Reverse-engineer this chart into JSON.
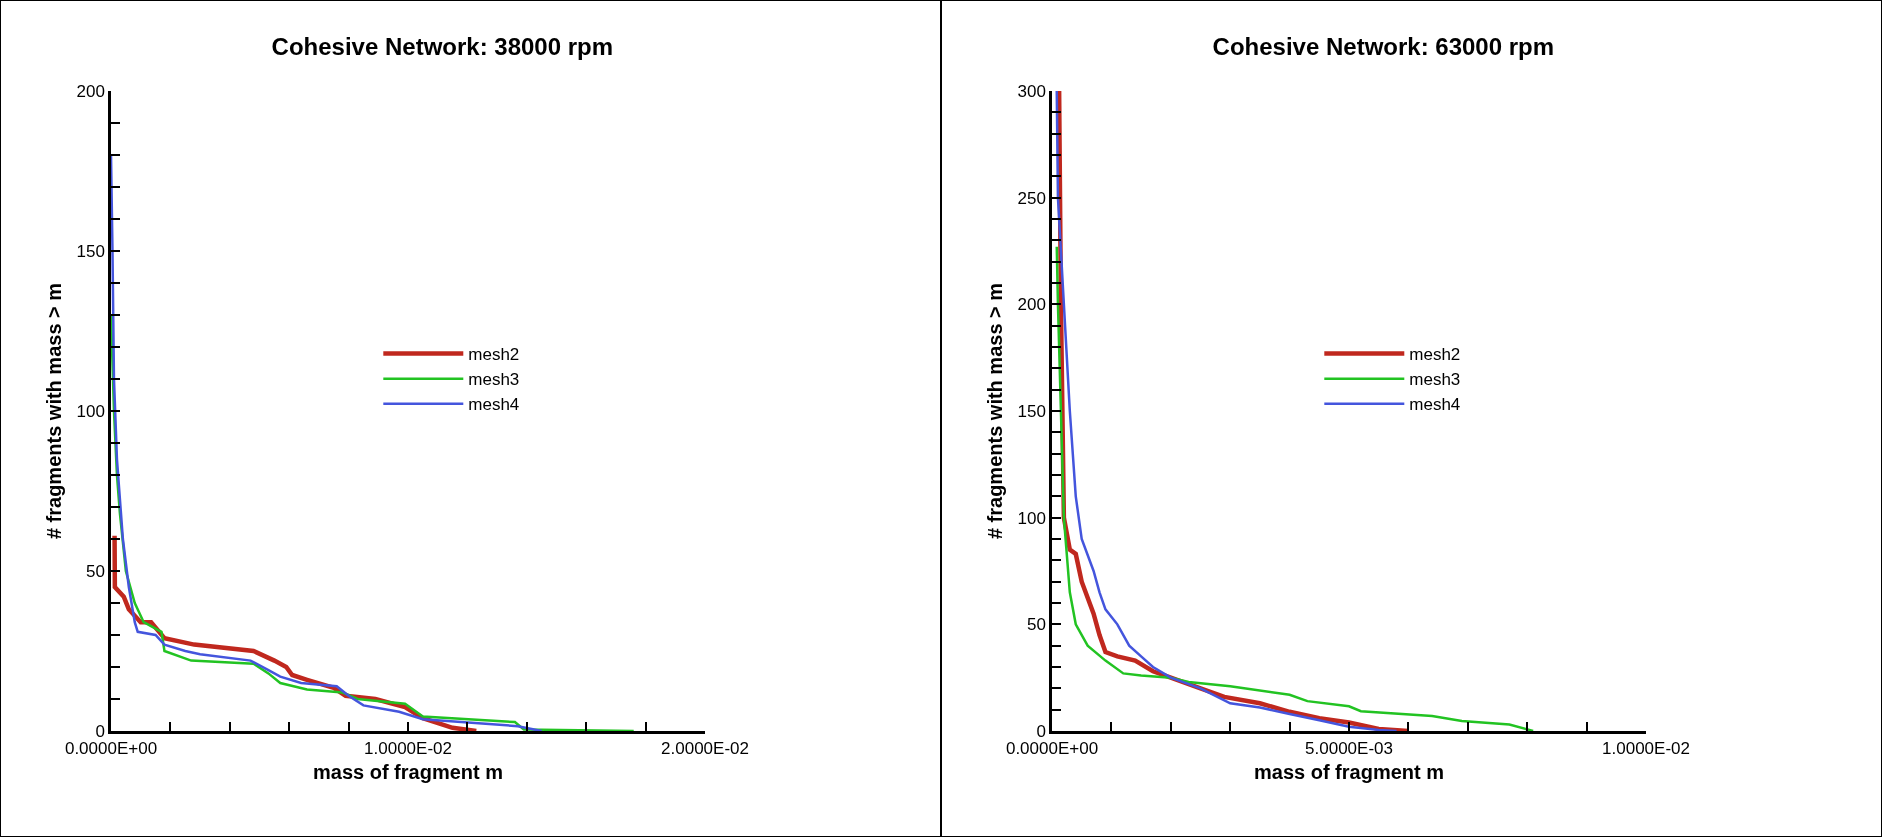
{
  "chart_data": [
    {
      "type": "line",
      "title": "Cohesive Network: 38000 rpm",
      "xlabel": "mass of fragment m",
      "ylabel": "# fragments with mass > m",
      "xlim": [
        0,
        0.02
      ],
      "xticks": [
        {
          "value": 0,
          "label": "0.0000E+00"
        },
        {
          "value": 0.002,
          "label": null
        },
        {
          "value": 0.004,
          "label": null
        },
        {
          "value": 0.006,
          "label": null
        },
        {
          "value": 0.008,
          "label": null
        },
        {
          "value": 0.01,
          "label": "1.0000E-02"
        },
        {
          "value": 0.012,
          "label": null
        },
        {
          "value": 0.014,
          "label": null
        },
        {
          "value": 0.016,
          "label": null
        },
        {
          "value": 0.018,
          "label": null
        },
        {
          "value": 0.02,
          "label": "2.0000E-02"
        }
      ],
      "ylim": [
        0,
        200
      ],
      "yticks": [
        0,
        {
          "value": 10,
          "label": null
        },
        {
          "value": 20,
          "label": null
        },
        {
          "value": 30,
          "label": null
        },
        {
          "value": 40,
          "label": null
        },
        50,
        {
          "value": 60,
          "label": null
        },
        {
          "value": 70,
          "label": null
        },
        {
          "value": 80,
          "label": null
        },
        {
          "value": 90,
          "label": null
        },
        100,
        {
          "value": 110,
          "label": null
        },
        {
          "value": 120,
          "label": null
        },
        {
          "value": 130,
          "label": null
        },
        {
          "value": 140,
          "label": null
        },
        150,
        {
          "value": 160,
          "label": null
        },
        {
          "value": 170,
          "label": null
        },
        {
          "value": 180,
          "label": null
        },
        {
          "value": 190,
          "label": null
        },
        200
      ],
      "grid": false,
      "legend": "center",
      "marker": "none",
      "line_style": "solid",
      "series": [
        {
          "name": "mesh2",
          "color": "#c0281e",
          "x": [
            0.00012,
            0.00013,
            0.00043,
            0.0006,
            0.001,
            0.00135,
            0.0018,
            0.0028,
            0.0048,
            0.0055,
            0.0059,
            0.0061,
            0.0066,
            0.0075,
            0.0079,
            0.0089,
            0.0099,
            0.0105,
            0.0115,
            0.0123
          ],
          "values": [
            61,
            45,
            42,
            38,
            34,
            34,
            29,
            27,
            25,
            22,
            20,
            17.5,
            16,
            13.5,
            11,
            10,
            7.5,
            4,
            1,
            0
          ]
        },
        {
          "name": "mesh3",
          "color": "#22c322",
          "x": [
            0,
            0.0001,
            0.0002,
            0.0003,
            0.0005,
            0.0008,
            0.0011,
            0.0017,
            0.0018,
            0.0027,
            0.0048,
            0.0053,
            0.0057,
            0.0066,
            0.0078,
            0.0083,
            0.0099,
            0.0105,
            0.0136,
            0.0139,
            0.0176
          ],
          "values": [
            130,
            100,
            80,
            68,
            50,
            40,
            34,
            31,
            25,
            22,
            21,
            18,
            15,
            13,
            12,
            10,
            8.5,
            4.5,
            2.8,
            0.5,
            0
          ]
        },
        {
          "name": "mesh4",
          "color": "#4455dd",
          "x": [
            0,
            5e-05,
            0.0001,
            0.0002,
            0.0004,
            0.0006,
            0.0008,
            0.0009,
            0.0015,
            0.0018,
            0.0025,
            0.003,
            0.0047,
            0.0053,
            0.0057,
            0.0064,
            0.0076,
            0.008,
            0.0085,
            0.0097,
            0.0105,
            0.0137,
            0.0145
          ],
          "values": [
            180,
            150,
            110,
            85,
            60,
            45,
            34,
            31,
            30,
            27,
            25,
            24,
            22,
            19,
            17,
            15,
            14,
            11,
            8,
            6,
            3.7,
            1.5,
            0
          ]
        }
      ]
    },
    {
      "type": "line",
      "title": "Cohesive Network: 63000 rpm",
      "xlabel": "mass of fragment m",
      "ylabel": "# fragments with mass > m",
      "xlim": [
        0,
        0.01
      ],
      "xticks": [
        {
          "value": 0,
          "label": "0.0000E+00"
        },
        {
          "value": 0.001,
          "label": null
        },
        {
          "value": 0.002,
          "label": null
        },
        {
          "value": 0.003,
          "label": null
        },
        {
          "value": 0.004,
          "label": null
        },
        {
          "value": 0.005,
          "label": "5.0000E-03"
        },
        {
          "value": 0.006,
          "label": null
        },
        {
          "value": 0.007,
          "label": null
        },
        {
          "value": 0.008,
          "label": null
        },
        {
          "value": 0.009,
          "label": null
        },
        {
          "value": 0.01,
          "label": "1.0000E-02"
        }
      ],
      "ylim": [
        0,
        300
      ],
      "yticks": [
        0,
        {
          "value": 10,
          "label": null
        },
        {
          "value": 20,
          "label": null
        },
        {
          "value": 30,
          "label": null
        },
        {
          "value": 40,
          "label": null
        },
        50,
        {
          "value": 60,
          "label": null
        },
        {
          "value": 70,
          "label": null
        },
        {
          "value": 80,
          "label": null
        },
        {
          "value": 90,
          "label": null
        },
        100,
        {
          "value": 110,
          "label": null
        },
        {
          "value": 120,
          "label": null
        },
        {
          "value": 130,
          "label": null
        },
        {
          "value": 140,
          "label": null
        },
        150,
        {
          "value": 160,
          "label": null
        },
        {
          "value": 170,
          "label": null
        },
        {
          "value": 180,
          "label": null
        },
        {
          "value": 190,
          "label": null
        },
        200,
        {
          "value": 210,
          "label": null
        },
        {
          "value": 220,
          "label": null
        },
        {
          "value": 230,
          "label": null
        },
        {
          "value": 240,
          "label": null
        },
        250,
        {
          "value": 260,
          "label": null
        },
        {
          "value": 270,
          "label": null
        },
        {
          "value": 280,
          "label": null
        },
        {
          "value": 290,
          "label": null
        },
        300
      ],
      "grid": false,
      "legend": "center",
      "marker": "none",
      "line_style": "solid",
      "series": [
        {
          "name": "mesh2",
          "color": "#c0281e",
          "x": [
            0.00012,
            0.00015,
            0.0002,
            0.0003,
            0.0004,
            0.0005,
            0.0007,
            0.0008,
            0.0009,
            0.0011,
            0.0014,
            0.0017,
            0.002,
            0.0025,
            0.0029,
            0.0035,
            0.004,
            0.0045,
            0.005,
            0.0055,
            0.006
          ],
          "values": [
            300,
            200,
            100,
            85,
            83,
            70,
            55,
            45,
            37,
            35,
            33,
            28,
            25,
            20,
            16,
            13,
            9,
            6,
            4,
            1,
            0
          ]
        },
        {
          "name": "mesh3",
          "color": "#22c322",
          "x": [
            8e-05,
            0.0001,
            0.00015,
            0.0002,
            0.0003,
            0.0004,
            0.0006,
            0.0009,
            0.0012,
            0.0015,
            0.002,
            0.0023,
            0.003,
            0.004,
            0.0043,
            0.005,
            0.0052,
            0.0064,
            0.0069,
            0.0077,
            0.0081
          ],
          "values": [
            227,
            200,
            150,
            100,
            65,
            50,
            40,
            33,
            27,
            26,
            25,
            23,
            21,
            17,
            14,
            11.6,
            9.3,
            7,
            4.7,
            3,
            0
          ]
        },
        {
          "name": "mesh4",
          "color": "#4455dd",
          "x": [
            8e-05,
            0.0001,
            0.0002,
            0.0003,
            0.0004,
            0.0005,
            0.0007,
            0.0008,
            0.0009,
            0.0011,
            0.0013,
            0.0015,
            0.0017,
            0.002,
            0.0025,
            0.003,
            0.0035,
            0.004,
            0.0045,
            0.005,
            0.0055,
            0.0058
          ],
          "values": [
            300,
            250,
            200,
            150,
            110,
            90,
            75,
            65,
            57,
            50,
            40,
            35,
            30,
            25,
            20,
            13,
            11,
            8,
            5,
            2,
            0.5,
            0
          ]
        }
      ]
    }
  ]
}
